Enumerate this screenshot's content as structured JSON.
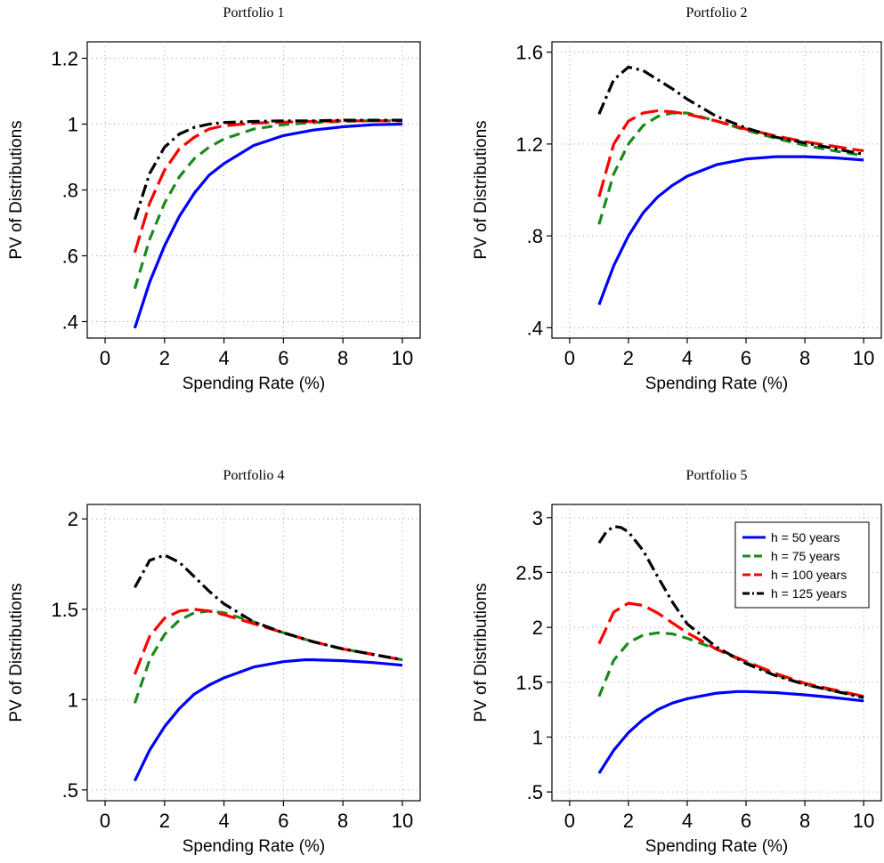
{
  "chart_data": [
    {
      "type": "line",
      "title": "Portfolio 1",
      "xlabel": "Spending Rate (%)",
      "ylabel": "PV of Distributions",
      "xlim": [
        -0.6,
        10.6
      ],
      "ylim": [
        0.35,
        1.25
      ],
      "xticks": [
        0,
        2,
        4,
        6,
        8,
        10
      ],
      "xtick_labels": [
        "0",
        "2",
        "4",
        "6",
        "8",
        "10"
      ],
      "yticks": [
        0.4,
        0.6,
        0.8,
        1.0,
        1.2
      ],
      "ytick_labels": [
        ".4",
        ".6",
        ".8",
        "1",
        "1.2"
      ],
      "grid": true,
      "series": [
        {
          "name": "h = 50 years",
          "color": "#0000ff",
          "dash": "solid",
          "x": [
            1,
            1.5,
            2,
            2.5,
            3,
            3.5,
            4,
            5,
            6,
            7,
            8,
            9,
            10
          ],
          "y": [
            0.38,
            0.52,
            0.63,
            0.72,
            0.79,
            0.845,
            0.88,
            0.935,
            0.965,
            0.982,
            0.992,
            0.998,
            1.0
          ]
        },
        {
          "name": "h = 75 years",
          "color": "#1a8a1a",
          "dash": "dashed",
          "x": [
            1,
            1.5,
            2,
            2.5,
            3,
            3.5,
            4,
            5,
            6,
            7,
            8,
            9,
            10
          ],
          "y": [
            0.5,
            0.65,
            0.76,
            0.84,
            0.895,
            0.93,
            0.955,
            0.985,
            0.998,
            1.005,
            1.008,
            1.01,
            1.01
          ]
        },
        {
          "name": "h = 100 years",
          "color": "#ff0000",
          "dash": "longdash",
          "x": [
            1,
            1.5,
            2,
            2.5,
            3,
            3.5,
            4,
            5,
            6,
            7,
            8,
            9,
            10
          ],
          "y": [
            0.61,
            0.76,
            0.86,
            0.925,
            0.96,
            0.985,
            0.995,
            1.003,
            1.006,
            1.008,
            1.01,
            1.01,
            1.01
          ]
        },
        {
          "name": "h = 125 years",
          "color": "#000000",
          "dash": "dashdot",
          "x": [
            1,
            1.5,
            2,
            2.5,
            3,
            3.5,
            4,
            5,
            6,
            7,
            8,
            9,
            10
          ],
          "y": [
            0.71,
            0.85,
            0.93,
            0.97,
            0.99,
            1.0,
            1.005,
            1.008,
            1.01,
            1.01,
            1.012,
            1.012,
            1.012
          ]
        }
      ]
    },
    {
      "type": "line",
      "title": "Portfolio 2",
      "xlabel": "Spending Rate (%)",
      "ylabel": "PV of Distributions",
      "xlim": [
        -0.6,
        10.6
      ],
      "ylim": [
        0.355,
        1.645
      ],
      "xticks": [
        0,
        2,
        4,
        6,
        8,
        10
      ],
      "xtick_labels": [
        "0",
        "2",
        "4",
        "6",
        "8",
        "10"
      ],
      "yticks": [
        0.4,
        0.8,
        1.2,
        1.6
      ],
      "ytick_labels": [
        ".4",
        ".8",
        "1.2",
        "1.6"
      ],
      "grid": true,
      "series": [
        {
          "name": "h = 50 years",
          "color": "#0000ff",
          "dash": "solid",
          "x": [
            1,
            1.5,
            2,
            2.5,
            3,
            3.5,
            4,
            5,
            6,
            7,
            8,
            9,
            10
          ],
          "y": [
            0.5,
            0.67,
            0.8,
            0.9,
            0.97,
            1.02,
            1.06,
            1.11,
            1.135,
            1.145,
            1.145,
            1.14,
            1.13
          ]
        },
        {
          "name": "h = 75 years",
          "color": "#1a8a1a",
          "dash": "dashed",
          "x": [
            1,
            1.5,
            2,
            2.5,
            3,
            3.5,
            4,
            5,
            6,
            7,
            8,
            9,
            10
          ],
          "y": [
            0.85,
            1.07,
            1.2,
            1.28,
            1.32,
            1.335,
            1.335,
            1.3,
            1.26,
            1.225,
            1.195,
            1.17,
            1.15
          ]
        },
        {
          "name": "h = 100 years",
          "color": "#ff0000",
          "dash": "longdash",
          "x": [
            1,
            1.5,
            2,
            2.5,
            3,
            3.5,
            4,
            5,
            6,
            7,
            8,
            9,
            10
          ],
          "y": [
            0.97,
            1.2,
            1.3,
            1.335,
            1.345,
            1.34,
            1.33,
            1.3,
            1.265,
            1.235,
            1.21,
            1.19,
            1.17
          ]
        },
        {
          "name": "h = 125 years",
          "color": "#000000",
          "dash": "dashdot",
          "x": [
            1,
            1.5,
            2,
            2.5,
            3,
            3.5,
            4,
            5,
            6,
            7,
            8,
            9,
            10
          ],
          "y": [
            1.33,
            1.48,
            1.535,
            1.52,
            1.48,
            1.44,
            1.395,
            1.32,
            1.27,
            1.23,
            1.205,
            1.18,
            1.155
          ]
        }
      ]
    },
    {
      "type": "line",
      "title": "Portfolio 4",
      "xlabel": "Spending Rate (%)",
      "ylabel": "PV of Distributions",
      "xlim": [
        -0.6,
        10.6
      ],
      "ylim": [
        0.44,
        2.08
      ],
      "xticks": [
        0,
        2,
        4,
        6,
        8,
        10
      ],
      "xtick_labels": [
        "0",
        "2",
        "4",
        "6",
        "8",
        "10"
      ],
      "yticks": [
        0.5,
        1.0,
        1.5,
        2.0
      ],
      "ytick_labels": [
        ".5",
        "1",
        "1.5",
        "2"
      ],
      "grid": true,
      "series": [
        {
          "name": "h = 50 years",
          "color": "#0000ff",
          "dash": "solid",
          "x": [
            1,
            1.5,
            2,
            2.5,
            3,
            3.5,
            4,
            5,
            6,
            6.7,
            7,
            8,
            9,
            10
          ],
          "y": [
            0.55,
            0.72,
            0.85,
            0.95,
            1.03,
            1.08,
            1.12,
            1.18,
            1.21,
            1.22,
            1.22,
            1.215,
            1.205,
            1.19
          ]
        },
        {
          "name": "h = 75 years",
          "color": "#1a8a1a",
          "dash": "dashed",
          "x": [
            1,
            1.5,
            2,
            2.5,
            3,
            3.5,
            4,
            5,
            6,
            7,
            8,
            9,
            10
          ],
          "y": [
            0.98,
            1.22,
            1.36,
            1.44,
            1.48,
            1.49,
            1.48,
            1.43,
            1.37,
            1.32,
            1.28,
            1.25,
            1.22
          ]
        },
        {
          "name": "h = 100 years",
          "color": "#ff0000",
          "dash": "longdash",
          "x": [
            1,
            1.5,
            2,
            2.5,
            3,
            3.5,
            4,
            5,
            6,
            7,
            8,
            9,
            10
          ],
          "y": [
            1.14,
            1.35,
            1.45,
            1.49,
            1.5,
            1.49,
            1.47,
            1.42,
            1.37,
            1.32,
            1.28,
            1.25,
            1.22
          ]
        },
        {
          "name": "h = 125 years",
          "color": "#000000",
          "dash": "dashdot",
          "x": [
            1,
            1.5,
            2,
            2.5,
            3,
            3.5,
            4,
            5,
            6,
            7,
            8,
            9,
            10
          ],
          "y": [
            1.62,
            1.77,
            1.8,
            1.76,
            1.68,
            1.6,
            1.53,
            1.43,
            1.37,
            1.32,
            1.28,
            1.25,
            1.22
          ]
        }
      ]
    },
    {
      "type": "line",
      "title": "Portfolio 5",
      "xlabel": "Spending Rate (%)",
      "ylabel": "PV of Distributions",
      "xlim": [
        -0.6,
        10.6
      ],
      "ylim": [
        0.42,
        3.12
      ],
      "xticks": [
        0,
        2,
        4,
        6,
        8,
        10
      ],
      "xtick_labels": [
        "0",
        "2",
        "4",
        "6",
        "8",
        "10"
      ],
      "yticks": [
        0.5,
        1.0,
        1.5,
        2.0,
        2.5,
        3.0
      ],
      "ytick_labels": [
        ".5",
        "1",
        "1.5",
        "2",
        "2.5",
        "3"
      ],
      "grid": true,
      "legend": "top-right",
      "series": [
        {
          "name": "h = 50 years",
          "color": "#0000ff",
          "dash": "solid",
          "x": [
            1,
            1.5,
            2,
            2.5,
            3,
            3.5,
            4,
            5,
            5.7,
            6,
            7,
            8,
            9,
            10
          ],
          "y": [
            0.67,
            0.88,
            1.04,
            1.16,
            1.25,
            1.31,
            1.35,
            1.4,
            1.415,
            1.415,
            1.405,
            1.385,
            1.36,
            1.33
          ]
        },
        {
          "name": "h = 75 years",
          "color": "#1a8a1a",
          "dash": "dashed",
          "x": [
            1,
            1.5,
            2,
            2.5,
            3,
            3.5,
            4,
            5,
            6,
            7,
            8,
            9,
            10
          ],
          "y": [
            1.37,
            1.7,
            1.86,
            1.93,
            1.95,
            1.94,
            1.9,
            1.8,
            1.68,
            1.57,
            1.48,
            1.42,
            1.37
          ]
        },
        {
          "name": "h = 100 years",
          "color": "#ff0000",
          "dash": "longdash",
          "x": [
            1,
            1.5,
            2,
            2.5,
            3,
            3.5,
            4,
            5,
            6,
            7,
            8,
            9,
            10
          ],
          "y": [
            1.85,
            2.14,
            2.22,
            2.2,
            2.13,
            2.04,
            1.95,
            1.8,
            1.69,
            1.58,
            1.49,
            1.43,
            1.37
          ]
        },
        {
          "name": "h = 125 years",
          "color": "#000000",
          "dash": "dashdot",
          "x": [
            1,
            1.25,
            1.5,
            1.75,
            2,
            2.5,
            3,
            3.5,
            4,
            5,
            6,
            7,
            8,
            9,
            10
          ],
          "y": [
            2.77,
            2.87,
            2.92,
            2.91,
            2.87,
            2.7,
            2.46,
            2.23,
            2.03,
            1.82,
            1.67,
            1.56,
            1.48,
            1.42,
            1.36
          ]
        }
      ]
    }
  ]
}
